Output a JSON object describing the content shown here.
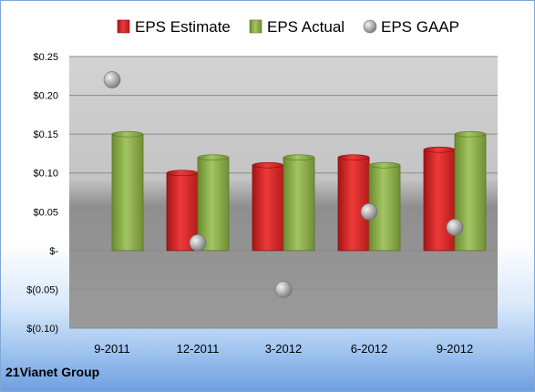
{
  "chart_data": {
    "type": "bar",
    "categories": [
      "9-2011",
      "12-2011",
      "3-2012",
      "6-2012",
      "9-2012"
    ],
    "series": [
      {
        "name": "EPS Estimate",
        "kind": "bar",
        "color": "#d92a2a",
        "values": [
          null,
          0.1,
          0.11,
          0.12,
          0.13
        ]
      },
      {
        "name": "EPS Actual",
        "kind": "bar",
        "color": "#8cb04a",
        "values": [
          0.15,
          0.12,
          0.12,
          0.11,
          0.15
        ]
      },
      {
        "name": "EPS GAAP",
        "kind": "marker",
        "color": "#a6a6a6",
        "values": [
          0.22,
          0.01,
          -0.05,
          0.05,
          0.03
        ]
      }
    ],
    "ylim": [
      -0.1,
      0.25
    ],
    "yticks": [
      -0.1,
      -0.05,
      0,
      0.05,
      0.1,
      0.15,
      0.2,
      0.25
    ],
    "ytick_labels": [
      "$(0.10)",
      "$(0.05)",
      "$-",
      "$0.05",
      "$0.10",
      "$0.15",
      "$0.20",
      "$0.25"
    ],
    "grid": true,
    "legend_position": "top"
  },
  "footer": {
    "company": "21Vianet Group"
  }
}
